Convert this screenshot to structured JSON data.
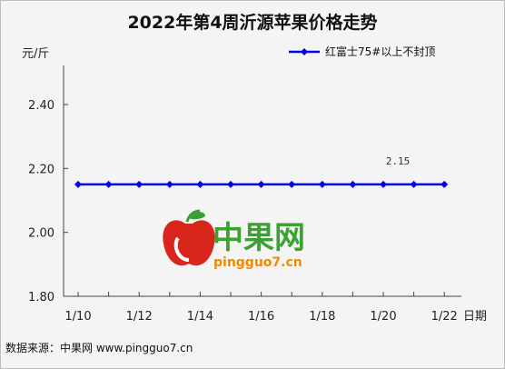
{
  "chart_data": {
    "type": "line",
    "title": "2022年第4周沂源苹果价格走势",
    "ylabel": "元/斤",
    "xlabel": "日期",
    "ylim": [
      1.8,
      2.4
    ],
    "yticks": [
      "1.80",
      "2.00",
      "2.20",
      "2.40"
    ],
    "x": [
      "1/10",
      "1/11",
      "1/12",
      "1/13",
      "1/14",
      "1/15",
      "1/16",
      "1/17",
      "1/18",
      "1/19",
      "1/20",
      "1/21",
      "1/22"
    ],
    "xtick_labels": [
      "1/10",
      "1/12",
      "1/14",
      "1/16",
      "1/18",
      "1/20",
      "1/22"
    ],
    "series": [
      {
        "name": "红富士75#以上不封顶",
        "values": [
          2.15,
          2.15,
          2.15,
          2.15,
          2.15,
          2.15,
          2.15,
          2.15,
          2.15,
          2.15,
          2.15,
          2.15,
          2.15
        ],
        "color": "#0000ee"
      }
    ],
    "annotations": [
      {
        "x": "1/20",
        "y": 2.15,
        "text": "2.15"
      }
    ],
    "grid": false,
    "legend_position": "top-right"
  },
  "watermark": {
    "logo_text": "中果网",
    "logo_url_text": "pingguo7.cn",
    "colors": {
      "green": "#3aa132",
      "orange": "#f08a00",
      "red": "#d9261c"
    }
  },
  "source": "数据来源：中果网 www.pingguo7.cn"
}
